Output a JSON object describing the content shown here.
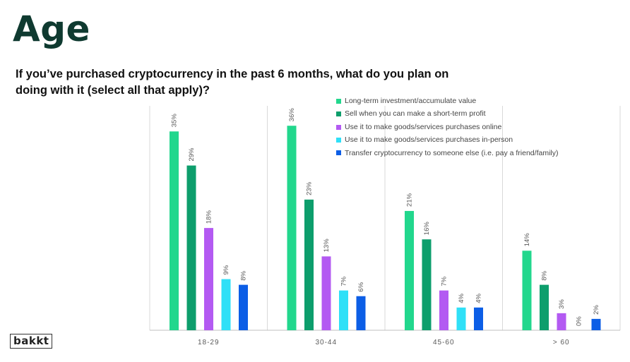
{
  "header": {
    "title": "Age",
    "question": "If you’ve purchased cryptocurrency in the past 6 months, what do you plan on doing with it (select all that apply)?"
  },
  "logo": {
    "text": "bakkt"
  },
  "chart_data": {
    "type": "bar",
    "categories": [
      "18-29",
      "30-44",
      "45-60",
      "> 60"
    ],
    "series": [
      {
        "name": "Long-term investment/accumulate value",
        "color": "#22d78d",
        "values": [
          35,
          36,
          21,
          14
        ],
        "labels": [
          "35%",
          "36%",
          "21%",
          "14%"
        ]
      },
      {
        "name": "Sell when you can make a short-term profit",
        "color": "#0d9e6c",
        "values": [
          29,
          23,
          16,
          8
        ],
        "labels": [
          "29%",
          "23%",
          "16%",
          "8%"
        ]
      },
      {
        "name": "Use it to make goods/services purchases online",
        "color": "#b35af2",
        "values": [
          18,
          13,
          7,
          3
        ],
        "labels": [
          "18%",
          "13%",
          "7%",
          "3%"
        ]
      },
      {
        "name": "Use it to make goods/services purchases in-person",
        "color": "#2fe0f7",
        "values": [
          9,
          7,
          4,
          0
        ],
        "labels": [
          "9%",
          "7%",
          "4%",
          "0%"
        ]
      },
      {
        "name": "Transfer cryptocurrency to someone else (i.e. pay a friend/family)",
        "color": "#0c5ee6",
        "values": [
          8,
          6,
          4,
          2
        ],
        "labels": [
          "8%",
          "6%",
          "4%",
          "2%"
        ]
      }
    ],
    "ylim": [
      0,
      40
    ],
    "grid": false,
    "legend_position": "top-right",
    "xlabel": "",
    "ylabel": ""
  }
}
